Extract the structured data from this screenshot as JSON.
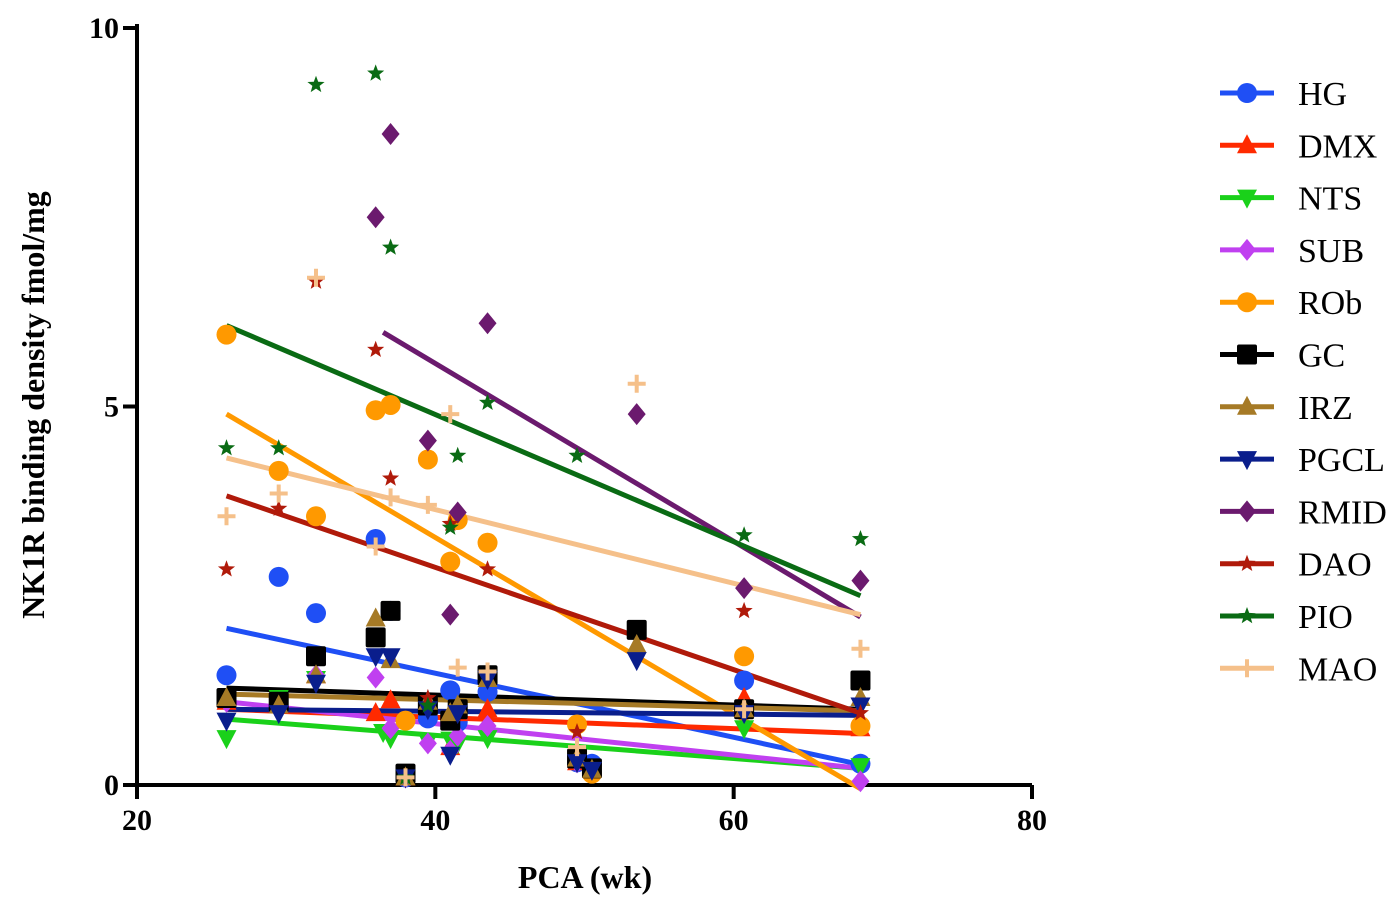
{
  "chart_data": {
    "type": "scatter",
    "title": "",
    "xlabel": "PCA (wk)",
    "ylabel": "NK1R binding density fmol/mg",
    "xlim": [
      20,
      80
    ],
    "ylim": [
      0,
      10
    ],
    "x_ticks": [
      20,
      40,
      60,
      80
    ],
    "y_ticks": [
      0,
      5,
      10
    ],
    "grid": false,
    "legend_position": "right",
    "x": [
      26,
      29.5,
      32,
      36,
      36.5,
      37,
      38,
      39.5,
      41,
      41.5,
      43.5,
      49.5,
      50.5,
      53.5,
      60.7,
      68.5
    ],
    "series": [
      {
        "name": "HG",
        "color": "#1f4ff5",
        "marker": "circle",
        "values": [
          1.45,
          2.75,
          2.27,
          3.25,
          null,
          2.3,
          0.1,
          0.88,
          1.25,
          0.83,
          1.23,
          0.3,
          0.28,
          null,
          1.38,
          0.28
        ],
        "trend": [
          2.07,
          0.27
        ]
      },
      {
        "name": "DMX",
        "color": "#ff2a00",
        "marker": "triangle-up",
        "values": [
          1.1,
          1.08,
          1.45,
          0.95,
          null,
          1.12,
          0.1,
          1.1,
          0.5,
          0.95,
          1.0,
          0.3,
          0.2,
          null,
          1.15,
          0.75
        ],
        "trend": [
          1.0,
          0.68
        ]
      },
      {
        "name": "NTS",
        "color": "#1ad11a",
        "marker": "triangle-down",
        "values": [
          0.62,
          1.15,
          1.4,
          null,
          0.7,
          0.62,
          0.1,
          0.58,
          0.6,
          0.55,
          0.62,
          null,
          0.2,
          null,
          0.75,
          0.25
        ],
        "trend": [
          0.87,
          0.22
        ]
      },
      {
        "name": "SUB",
        "color": "#c040f0",
        "marker": "diamond",
        "values": [
          1.1,
          1.05,
          1.45,
          1.42,
          null,
          0.75,
          0.1,
          0.55,
          0.45,
          0.65,
          0.78,
          0.3,
          0.2,
          null,
          1.0,
          0.05
        ],
        "trend": [
          1.1,
          0.22
        ]
      },
      {
        "name": "ROb",
        "color": "#ff9900",
        "marker": "circle",
        "values": [
          5.95,
          4.15,
          3.55,
          4.95,
          null,
          5.02,
          0.85,
          4.3,
          2.95,
          3.5,
          3.2,
          0.8,
          0.15,
          null,
          1.7,
          0.78
        ],
        "trend": [
          4.9,
          -0.05
        ]
      },
      {
        "name": "GC",
        "color": "#000000",
        "marker": "square",
        "values": [
          1.15,
          1.1,
          1.7,
          1.95,
          null,
          2.3,
          0.15,
          1.05,
          0.85,
          1.0,
          1.45,
          0.35,
          0.22,
          2.05,
          1.0,
          1.38
        ],
        "trend": [
          1.28,
          1.0
        ]
      },
      {
        "name": "IRZ",
        "color": "#a67a26",
        "marker": "triangle-up",
        "values": [
          1.15,
          1.05,
          1.45,
          2.2,
          null,
          1.65,
          0.1,
          1.1,
          0.95,
          1.05,
          1.4,
          0.35,
          0.2,
          1.85,
          1.0,
          1.15
        ],
        "trend": [
          1.2,
          0.98
        ]
      },
      {
        "name": "PGCL",
        "color": "#0a1e8c",
        "marker": "triangle-down",
        "values": [
          0.85,
          0.95,
          1.35,
          1.7,
          null,
          1.7,
          0.1,
          1.0,
          0.4,
          0.95,
          1.4,
          0.3,
          0.2,
          1.65,
          0.95,
          1.05
        ],
        "trend": [
          1.0,
          0.92
        ]
      },
      {
        "name": "RMID",
        "color": "#6b1a6e",
        "marker": "diamond",
        "values": [
          null,
          null,
          null,
          7.5,
          null,
          8.6,
          null,
          4.55,
          2.25,
          3.6,
          6.1,
          null,
          null,
          4.9,
          2.6,
          2.7
        ],
        "trend_x": [
          36.5,
          68.5
        ],
        "trend": [
          5.98,
          2.22
        ]
      },
      {
        "name": "DAO",
        "color": "#b01a0a",
        "marker": "star",
        "values": [
          2.85,
          3.65,
          6.65,
          5.75,
          null,
          4.05,
          null,
          1.15,
          3.45,
          null,
          2.85,
          0.7,
          null,
          null,
          2.3,
          0.95
        ],
        "trend": [
          3.82,
          0.95
        ]
      },
      {
        "name": "PIO",
        "color": "#0a6b14",
        "marker": "star",
        "values": [
          4.45,
          4.45,
          9.25,
          9.4,
          null,
          7.1,
          0.1,
          1.05,
          3.4,
          4.35,
          5.05,
          4.35,
          null,
          null,
          3.3,
          3.25
        ],
        "trend": [
          6.07,
          2.5
        ]
      },
      {
        "name": "MAO",
        "color": "#f5c08a",
        "marker": "plus",
        "values": [
          3.55,
          3.85,
          6.7,
          3.15,
          null,
          3.8,
          0.1,
          3.7,
          4.9,
          1.55,
          1.5,
          0.5,
          null,
          5.3,
          1.0,
          1.8
        ],
        "trend": [
          4.32,
          2.25
        ]
      }
    ]
  }
}
